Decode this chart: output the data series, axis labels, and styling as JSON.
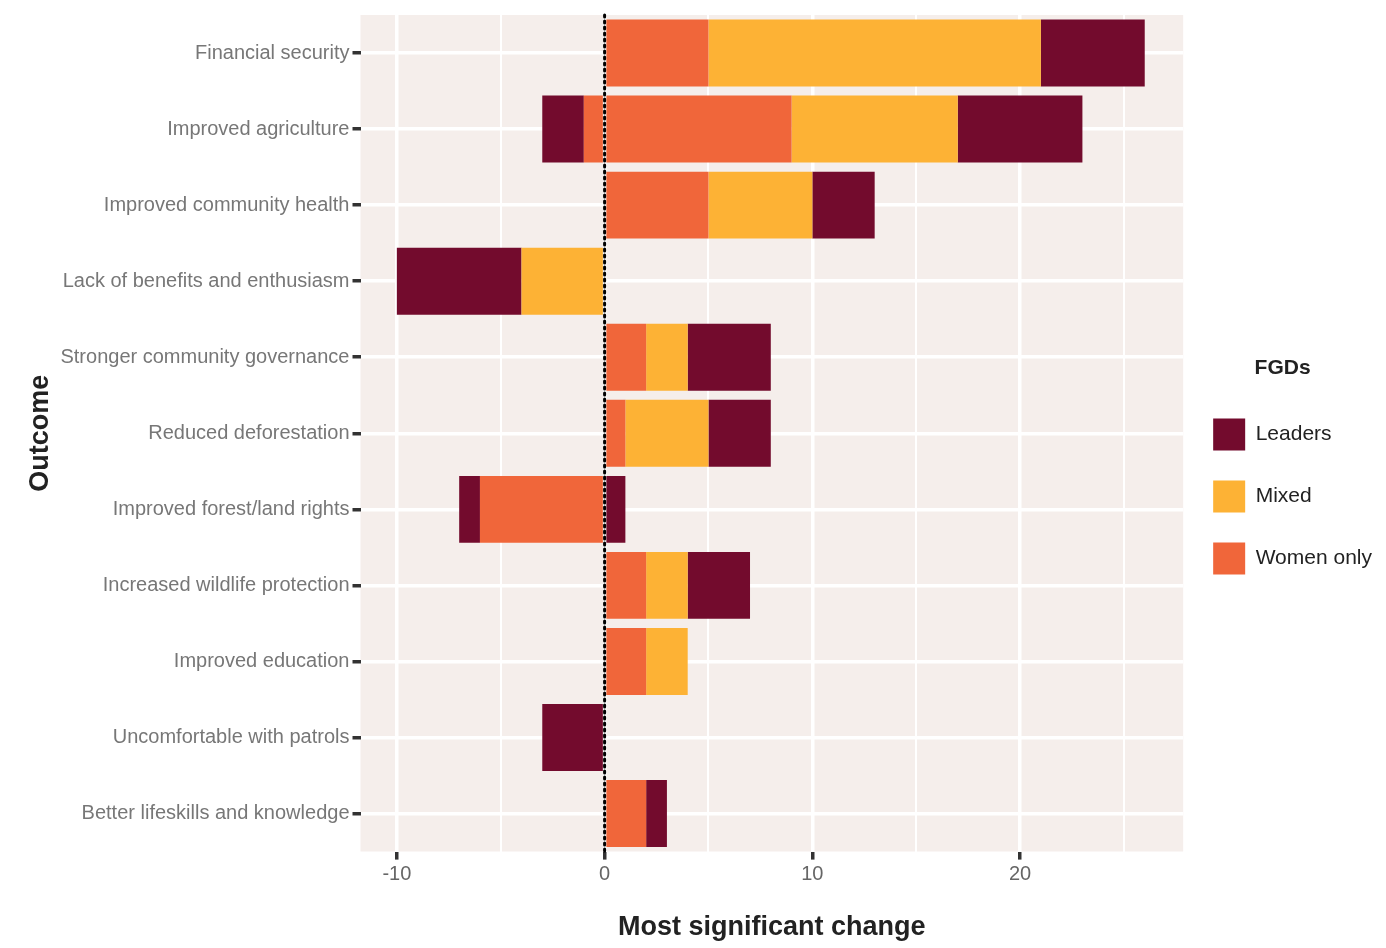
{
  "chart_data": {
    "type": "bar",
    "orientation": "horizontal",
    "stacked": true,
    "categories": [
      "Financial security",
      "Improved agriculture",
      "Improved community health",
      "Lack of benefits and enthusiasm",
      "Stronger community governance",
      "Reduced deforestation",
      "Improved forest/land rights",
      "Increased wildlife protection",
      "Improved education",
      "Uncomfortable with patrols",
      "Better lifeskills and knowledge"
    ],
    "series": [
      {
        "name": "Women only",
        "color": "#f0663a",
        "values": [
          5,
          9,
          5,
          null,
          2,
          1,
          null,
          2,
          2,
          null,
          2
        ]
      },
      {
        "name": "Mixed",
        "color": "#fdb235",
        "values": [
          16,
          8,
          5,
          null,
          2,
          4,
          null,
          2,
          2,
          null,
          null
        ]
      },
      {
        "name": "Leaders",
        "color": "#730b2d",
        "values": [
          5,
          6,
          3,
          null,
          4,
          3,
          1,
          3,
          null,
          null,
          1
        ]
      },
      {
        "color": "#f0663a",
        "values": [
          null,
          -1,
          null,
          null,
          null,
          null,
          -6,
          null,
          null,
          null,
          null
        ]
      },
      {
        "color": "#fdb235",
        "values": [
          null,
          null,
          null,
          -4,
          null,
          null,
          null,
          null,
          null,
          null,
          null
        ]
      },
      {
        "color": "#730b2d",
        "values": [
          null,
          -2,
          null,
          -6,
          null,
          null,
          -1,
          null,
          null,
          -3,
          null
        ]
      }
    ],
    "xlabel": "Most significant change",
    "ylabel": "Outcome",
    "legend_title": "FGDs",
    "legend": "right",
    "xlim": [
      -11.75,
      27.85
    ],
    "xticks": [
      -10,
      {
        "value": -5,
        "label": null
      },
      0,
      {
        "value": 5,
        "label": null
      },
      10,
      {
        "value": 15,
        "label": null
      },
      20,
      {
        "value": 25,
        "label": null
      }
    ],
    "grid": true,
    "ref_lines": [
      {
        "axis": "x",
        "value": 0,
        "color": "#000000",
        "line_style": "dotted"
      }
    ]
  }
}
